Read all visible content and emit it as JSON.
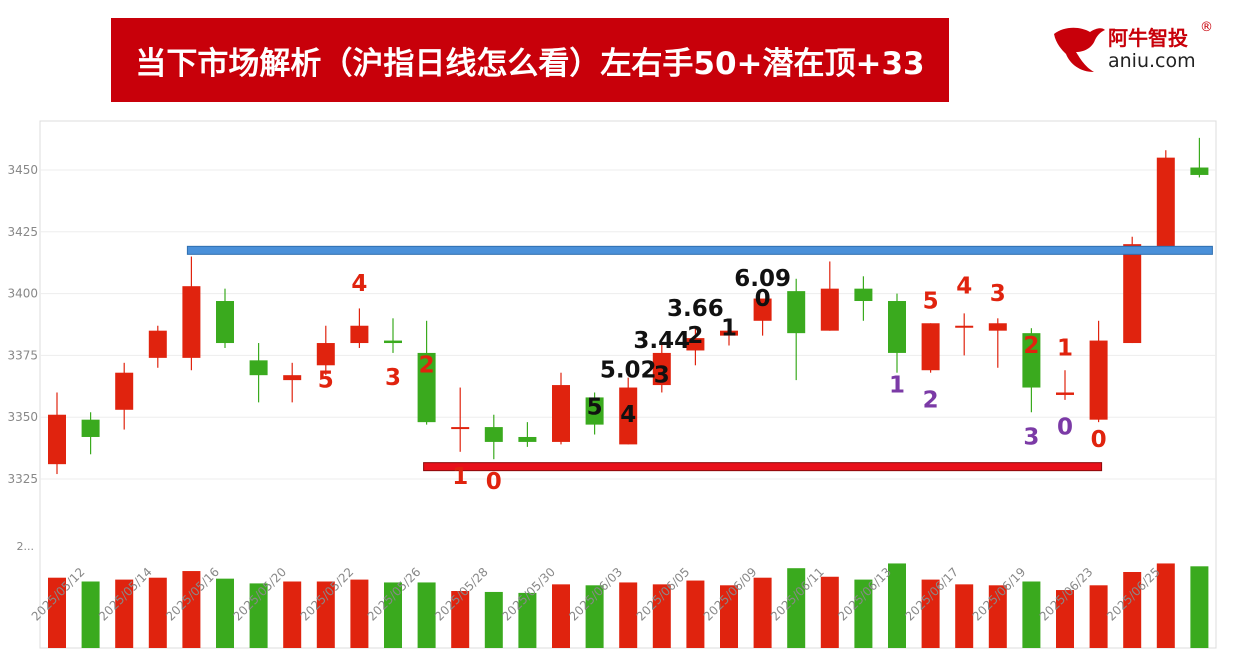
{
  "header": {
    "title": "当下市场解析（沪指日线怎么看）左右手50+潜在顶+33"
  },
  "logo": {
    "name": "阿牛智投",
    "reg_mark": "®",
    "url": "aniu.com",
    "icon": "bull-logo-icon",
    "brand_color": "#c8000a"
  },
  "colors": {
    "up": "#e0230e",
    "down": "#3aaa1e",
    "resistance_line": "#4a90d9",
    "support_line": "#e8101a",
    "annotation_red": "#e0230e",
    "annotation_black": "#111111",
    "annotation_purple": "#7b3aa6"
  },
  "chart_data": {
    "type": "candlestick",
    "y_ticks": [
      3325,
      3350,
      3375,
      3400,
      3425,
      3450
    ],
    "ylim": [
      3300,
      3470
    ],
    "volume_axis_label": "2...",
    "x_tick_labels": [
      "2025/05/12",
      "2025/05/14",
      "2025/05/16",
      "2025/05/20",
      "2025/05/22",
      "2025/05/26",
      "2025/05/28",
      "2025/05/30",
      "2025/06/03",
      "2025/06/05",
      "2025/06/09",
      "2025/06/11",
      "2025/06/13",
      "2025/06/17",
      "2025/06/19",
      "2025/06/23",
      "2025/06/25"
    ],
    "candles": [
      {
        "o": 3331,
        "h": 3360,
        "l": 3327,
        "c": 3351,
        "vol": 0.74
      },
      {
        "o": 3349,
        "h": 3352,
        "l": 3335,
        "c": 3342,
        "vol": 0.7
      },
      {
        "o": 3353,
        "h": 3372,
        "l": 3345,
        "c": 3368,
        "vol": 0.72
      },
      {
        "o": 3374,
        "h": 3387,
        "l": 3370,
        "c": 3385,
        "vol": 0.74
      },
      {
        "o": 3374,
        "h": 3415,
        "l": 3369,
        "c": 3403,
        "vol": 0.81
      },
      {
        "o": 3397,
        "h": 3402,
        "l": 3378,
        "c": 3380,
        "vol": 0.73
      },
      {
        "o": 3373,
        "h": 3380,
        "l": 3356,
        "c": 3367,
        "vol": 0.68
      },
      {
        "o": 3365,
        "h": 3372,
        "l": 3356,
        "c": 3367,
        "vol": 0.7
      },
      {
        "o": 3371,
        "h": 3387,
        "l": 3367,
        "c": 3380,
        "vol": 0.7
      },
      {
        "o": 3380,
        "h": 3394,
        "l": 3378,
        "c": 3387,
        "vol": 0.72
      },
      {
        "o": 3381,
        "h": 3390,
        "l": 3376,
        "c": 3380,
        "vol": 0.69
      },
      {
        "o": 3376,
        "h": 3389,
        "l": 3347,
        "c": 3348,
        "vol": 0.69
      },
      {
        "o": 3346,
        "h": 3362,
        "l": 3336,
        "c": 3346,
        "vol": 0.6
      },
      {
        "o": 3346,
        "h": 3351,
        "l": 3333,
        "c": 3340,
        "vol": 0.59
      },
      {
        "o": 3342,
        "h": 3348,
        "l": 3338,
        "c": 3340,
        "vol": 0.58
      },
      {
        "o": 3340,
        "h": 3368,
        "l": 3339,
        "c": 3363,
        "vol": 0.67
      },
      {
        "o": 3358,
        "h": 3360,
        "l": 3343,
        "c": 3347,
        "vol": 0.66
      },
      {
        "o": 3339,
        "h": 3366,
        "l": 3339,
        "c": 3362,
        "vol": 0.69
      },
      {
        "o": 3363,
        "h": 3380,
        "l": 3360,
        "c": 3376,
        "vol": 0.67
      },
      {
        "o": 3377,
        "h": 3386,
        "l": 3371,
        "c": 3382,
        "vol": 0.71
      },
      {
        "o": 3383,
        "h": 3388,
        "l": 3379,
        "c": 3385,
        "vol": 0.66
      },
      {
        "o": 3389,
        "h": 3397,
        "l": 3383,
        "c": 3398,
        "vol": 0.74
      },
      {
        "o": 3401,
        "h": 3406,
        "l": 3365,
        "c": 3384,
        "vol": 0.84
      },
      {
        "o": 3385,
        "h": 3413,
        "l": 3385,
        "c": 3402,
        "vol": 0.75
      },
      {
        "o": 3402,
        "h": 3407,
        "l": 3389,
        "c": 3397,
        "vol": 0.72
      },
      {
        "o": 3397,
        "h": 3400,
        "l": 3368,
        "c": 3376,
        "vol": 0.89
      },
      {
        "o": 3369,
        "h": 3388,
        "l": 3368,
        "c": 3388,
        "vol": 0.72
      },
      {
        "o": 3387,
        "h": 3392,
        "l": 3375,
        "c": 3387,
        "vol": 0.67
      },
      {
        "o": 3385,
        "h": 3390,
        "l": 3370,
        "c": 3388,
        "vol": 0.66
      },
      {
        "o": 3384,
        "h": 3386,
        "l": 3352,
        "c": 3362,
        "vol": 0.7
      },
      {
        "o": 3359,
        "h": 3369,
        "l": 3357,
        "c": 3360,
        "vol": 0.61
      },
      {
        "o": 3349,
        "h": 3389,
        "l": 3348,
        "c": 3381,
        "vol": 0.66
      },
      {
        "o": 3380,
        "h": 3423,
        "l": 3380,
        "c": 3420,
        "vol": 0.8
      },
      {
        "o": 3419,
        "h": 3458,
        "l": 3419,
        "c": 3455,
        "vol": 0.89
      },
      {
        "o": 3451,
        "h": 3463,
        "l": 3447,
        "c": 3448,
        "vol": 0.86
      }
    ],
    "resistance_line": {
      "value": 3417.5,
      "from_index": 4,
      "to_index": 34
    },
    "support_line": {
      "value": 3330,
      "from_index": 11,
      "to_index": 31
    },
    "annotations": [
      {
        "text": "5",
        "i": 8,
        "y": 3362,
        "color": "red"
      },
      {
        "text": "4",
        "i": 9,
        "y": 3401,
        "color": "red"
      },
      {
        "text": "3",
        "i": 10,
        "y": 3363,
        "color": "red"
      },
      {
        "text": "2",
        "i": 11,
        "y": 3368,
        "color": "red"
      },
      {
        "text": "1",
        "i": 12,
        "y": 3323,
        "color": "red"
      },
      {
        "text": "0",
        "i": 13,
        "y": 3321,
        "color": "red"
      },
      {
        "text": "5",
        "i": 16,
        "y": 3351,
        "color": "black"
      },
      {
        "text": "4",
        "i": 17,
        "y": 3348,
        "color": "black"
      },
      {
        "text": "5.02",
        "i": 17,
        "y": 3366,
        "color": "black"
      },
      {
        "text": "3",
        "i": 18,
        "y": 3364,
        "color": "black"
      },
      {
        "text": "3.44",
        "i": 18,
        "y": 3378,
        "color": "black"
      },
      {
        "text": "2",
        "i": 19,
        "y": 3380,
        "color": "black"
      },
      {
        "text": "3.66",
        "i": 19,
        "y": 3391,
        "color": "black"
      },
      {
        "text": "1",
        "i": 20,
        "y": 3383,
        "color": "black"
      },
      {
        "text": "0",
        "i": 21,
        "y": 3395,
        "color": "black"
      },
      {
        "text": "6.09",
        "i": 21,
        "y": 3403,
        "color": "black"
      },
      {
        "text": "1",
        "i": 25,
        "y": 3360,
        "color": "purple"
      },
      {
        "text": "2",
        "i": 26,
        "y": 3354,
        "color": "purple"
      },
      {
        "text": "5",
        "i": 26,
        "y": 3394,
        "color": "red"
      },
      {
        "text": "4",
        "i": 27,
        "y": 3400,
        "color": "red"
      },
      {
        "text": "3",
        "i": 28,
        "y": 3397,
        "color": "red"
      },
      {
        "text": "2",
        "i": 29,
        "y": 3376,
        "color": "red"
      },
      {
        "text": "1",
        "i": 30,
        "y": 3375,
        "color": "red"
      },
      {
        "text": "3",
        "i": 29,
        "y": 3339,
        "color": "purple"
      },
      {
        "text": "0",
        "i": 30,
        "y": 3343,
        "color": "purple"
      },
      {
        "text": "0",
        "i": 31,
        "y": 3338,
        "color": "red"
      }
    ]
  }
}
